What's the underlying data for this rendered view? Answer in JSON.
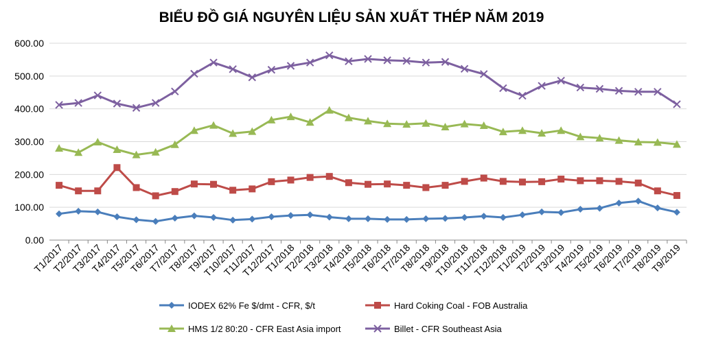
{
  "chart_data": {
    "type": "line",
    "title": "BIỂU ĐỒ GIÁ NGUYÊN LIỆU SẢN XUẤT THÉP NĂM 2019",
    "xlabel": "",
    "ylabel": "",
    "ylim": [
      0,
      600
    ],
    "yticks": [
      "0.00",
      "100.00",
      "200.00",
      "300.00",
      "400.00",
      "500.00",
      "600.00"
    ],
    "grid": true,
    "legend_position": "bottom",
    "categories": [
      "T1/2017",
      "T2/2017",
      "T3/2017",
      "T4/2017",
      "T5/2017",
      "T6/2017",
      "T7/2017",
      "T8/2017",
      "T9/2017",
      "T10/2017",
      "T11/2017",
      "T12/2017",
      "T1/2018",
      "T2/2018",
      "T3/2018",
      "T4/2018",
      "T5/2018",
      "T6/2018",
      "T7/2018",
      "T8/2018",
      "T9/2018",
      "T10/2018",
      "T11/2018",
      "T12/2018",
      "T1/2019",
      "T2/2019",
      "T3/2019",
      "T4/2019",
      "T5/2019",
      "T6/2019",
      "T7/2019",
      "T8/2019",
      "T9/2019"
    ],
    "series": [
      {
        "name": "IODEX 62% Fe $/dmt - CFR, $/t",
        "color": "#4a7ebb",
        "marker": "diamond",
        "values": [
          80,
          88,
          86,
          71,
          62,
          57,
          67,
          74,
          69,
          61,
          64,
          71,
          75,
          77,
          70,
          65,
          65,
          63,
          63,
          65,
          66,
          69,
          73,
          69,
          77,
          86,
          84,
          94,
          97,
          113,
          119,
          98,
          85
        ]
      },
      {
        "name": "Hard Coking Coal - FOB Australia",
        "color": "#be4b48",
        "marker": "square",
        "values": [
          167,
          150,
          150,
          221,
          160,
          135,
          148,
          171,
          170,
          152,
          156,
          178,
          183,
          191,
          194,
          175,
          170,
          171,
          167,
          160,
          167,
          179,
          189,
          179,
          177,
          178,
          186,
          181,
          181,
          179,
          174,
          150,
          136
        ]
      },
      {
        "name": "HMS 1/2 80:20 - CFR East Asia import",
        "color": "#98b954",
        "marker": "triangle",
        "values": [
          280,
          267,
          299,
          276,
          260,
          268,
          291,
          334,
          350,
          325,
          331,
          366,
          376,
          359,
          396,
          373,
          363,
          355,
          353,
          356,
          345,
          354,
          349,
          330,
          334,
          326,
          334,
          315,
          311,
          304,
          299,
          298,
          292
        ]
      },
      {
        "name": "Billet - CFR Southeast Asia",
        "color": "#7d60a0",
        "marker": "x",
        "values": [
          412,
          418,
          441,
          416,
          403,
          418,
          453,
          507,
          541,
          521,
          496,
          519,
          531,
          541,
          563,
          545,
          552,
          548,
          546,
          541,
          543,
          522,
          506,
          463,
          440,
          470,
          486,
          465,
          461,
          455,
          452,
          452,
          414
        ]
      }
    ]
  }
}
